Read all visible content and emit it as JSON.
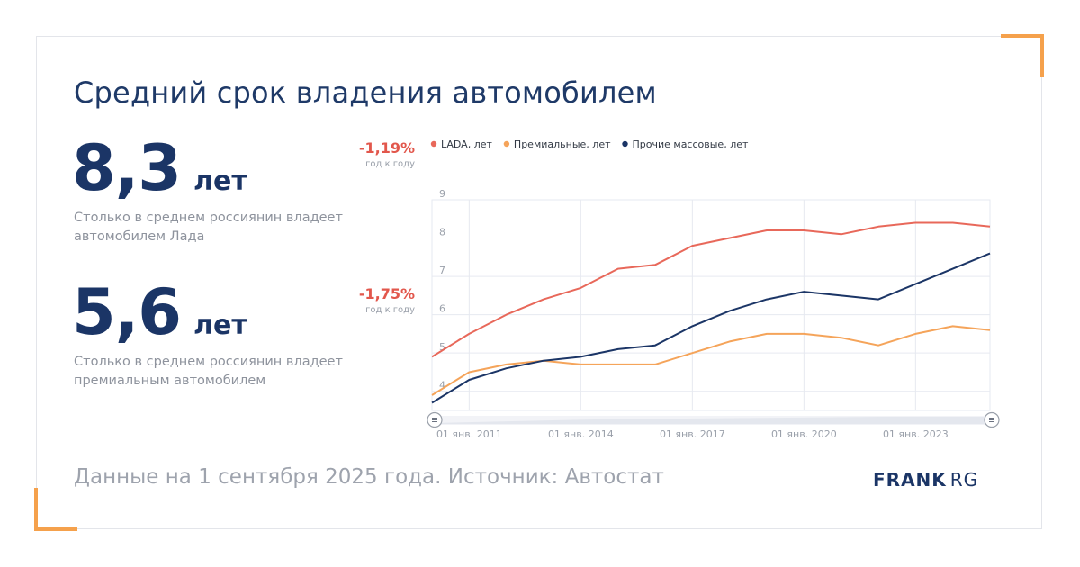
{
  "title": "Средний срок владения автомобилем",
  "stats": [
    {
      "value": "8,3",
      "unit": "лет",
      "description": "Столько в среднем россиянин владеет автомобилем Лада",
      "change": "-1,19%",
      "change_sub": "год к году"
    },
    {
      "value": "5,6",
      "unit": "лет",
      "description": "Столько в среднем россиянин владеет премиальным автомобилем",
      "change": "-1,75%",
      "change_sub": "год к году"
    }
  ],
  "footer": "Данные на 1 сентября 2025 года. Источник: Автостат",
  "logo": {
    "bold": "FRANK",
    "light": "RG"
  },
  "colors": {
    "accent": "#f5a14c",
    "lada": "#e8685a",
    "premium": "#f5a45a",
    "mass": "#1b3566",
    "change": "#e2574c"
  },
  "chart_data": {
    "type": "line",
    "x": [
      "2010",
      "2011",
      "2012",
      "2013",
      "2014",
      "2015",
      "2016",
      "2017",
      "2018",
      "2019",
      "2020",
      "2021",
      "2022",
      "2023",
      "2024",
      "2025"
    ],
    "series": [
      {
        "name": "LADA, лет",
        "color": "#e8685a",
        "values": [
          4.9,
          5.5,
          6.0,
          6.4,
          6.7,
          7.2,
          7.3,
          7.8,
          8.0,
          8.2,
          8.2,
          8.1,
          8.3,
          8.4,
          8.4,
          8.3
        ]
      },
      {
        "name": "Премиальные, лет",
        "color": "#f5a45a",
        "values": [
          3.9,
          4.5,
          4.7,
          4.8,
          4.7,
          4.7,
          4.7,
          5.0,
          5.3,
          5.5,
          5.5,
          5.4,
          5.2,
          5.5,
          5.7,
          5.6
        ]
      },
      {
        "name": "Прочие массовые, лет",
        "color": "#1b3566",
        "values": [
          3.7,
          4.3,
          4.6,
          4.8,
          4.9,
          5.1,
          5.2,
          5.7,
          6.1,
          6.4,
          6.6,
          6.5,
          6.4,
          6.8,
          7.2,
          7.6
        ]
      }
    ],
    "y_ticks": [
      "9",
      "8",
      "7",
      "6",
      "5",
      "4"
    ],
    "x_tick_labels": [
      {
        "x": "2011",
        "label": "01 янв. 2011"
      },
      {
        "x": "2014",
        "label": "01 янв. 2014"
      },
      {
        "x": "2017",
        "label": "01 янв. 2017"
      },
      {
        "x": "2020",
        "label": "01 янв. 2020"
      },
      {
        "x": "2023",
        "label": "01 янв. 2023"
      }
    ],
    "ylim": [
      3.5,
      9
    ],
    "grid": true,
    "legend": "top"
  }
}
